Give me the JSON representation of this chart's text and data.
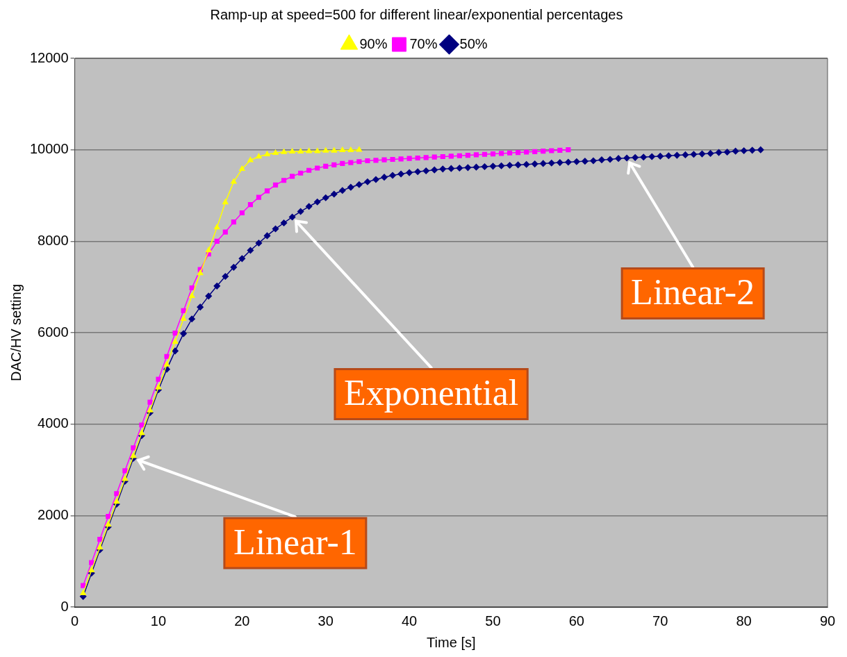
{
  "chart_data": {
    "type": "line",
    "title": "Ramp-up at speed=500 for different linear/exponential percentages",
    "xlabel": "Time [s]",
    "ylabel": "DAC/HV setting",
    "xlim": [
      0,
      90
    ],
    "xticks": [
      0,
      10,
      20,
      30,
      40,
      50,
      60,
      70,
      80,
      90
    ],
    "ylim": [
      0,
      12000
    ],
    "yticks": [
      0,
      2000,
      4000,
      6000,
      8000,
      10000,
      12000
    ],
    "grid": "y",
    "legend": "top",
    "line_style": "solid",
    "annotations": [
      {
        "text": "Linear-1",
        "x": 7,
        "y": 3250
      },
      {
        "text": "Exponential",
        "x": 26,
        "y": 8530
      },
      {
        "text": "Linear-2",
        "x": 66,
        "y": 9820
      }
    ],
    "series": [
      {
        "name": "90%",
        "color": "#ffff00",
        "marker": "triangle",
        "x": [
          1,
          2,
          3,
          4,
          5,
          6,
          7,
          8,
          9,
          10,
          11,
          12,
          13,
          14,
          15,
          16,
          17,
          18,
          19,
          20,
          21,
          22,
          23,
          24,
          25,
          26,
          27,
          28,
          29,
          30,
          31,
          32,
          33,
          34
        ],
        "values": [
          300,
          800,
          1300,
          1800,
          2300,
          2800,
          3300,
          3800,
          4300,
          4800,
          5300,
          5800,
          6300,
          6800,
          7300,
          7800,
          8300,
          8850,
          9300,
          9580,
          9770,
          9850,
          9900,
          9930,
          9950,
          9960,
          9960,
          9970,
          9970,
          9980,
          9980,
          9990,
          9990,
          10000
        ]
      },
      {
        "name": "70%",
        "color": "#ff00ff",
        "marker": "square",
        "x": [
          1,
          2,
          3,
          4,
          5,
          6,
          7,
          8,
          9,
          10,
          11,
          12,
          13,
          14,
          15,
          16,
          17,
          18,
          19,
          20,
          21,
          22,
          23,
          24,
          25,
          26,
          27,
          28,
          29,
          30,
          31,
          32,
          33,
          34,
          35,
          36,
          37,
          38,
          39,
          40,
          41,
          42,
          43,
          44,
          45,
          46,
          47,
          48,
          49,
          50,
          51,
          52,
          53,
          54,
          55,
          56,
          57,
          58,
          59
        ],
        "values": [
          470,
          970,
          1480,
          1980,
          2480,
          2980,
          3480,
          3980,
          4480,
          4980,
          5480,
          5990,
          6480,
          6980,
          7380,
          7720,
          8000,
          8200,
          8420,
          8620,
          8800,
          8960,
          9100,
          9230,
          9330,
          9420,
          9490,
          9550,
          9600,
          9640,
          9670,
          9700,
          9720,
          9740,
          9760,
          9770,
          9780,
          9790,
          9800,
          9810,
          9820,
          9830,
          9840,
          9850,
          9860,
          9870,
          9880,
          9890,
          9900,
          9910,
          9920,
          9930,
          9940,
          9950,
          9960,
          9970,
          9980,
          9990,
          10000
        ]
      },
      {
        "name": "50%",
        "color": "#000080",
        "marker": "diamond",
        "x": [
          1,
          2,
          3,
          4,
          5,
          6,
          7,
          8,
          9,
          10,
          11,
          12,
          13,
          14,
          15,
          16,
          17,
          18,
          19,
          20,
          21,
          22,
          23,
          24,
          25,
          26,
          27,
          28,
          29,
          30,
          31,
          32,
          33,
          34,
          35,
          36,
          37,
          38,
          39,
          40,
          41,
          42,
          43,
          44,
          45,
          46,
          47,
          48,
          49,
          50,
          51,
          52,
          53,
          54,
          55,
          56,
          57,
          58,
          59,
          60,
          61,
          62,
          63,
          64,
          65,
          66,
          67,
          68,
          69,
          70,
          71,
          72,
          73,
          74,
          75,
          76,
          77,
          78,
          79,
          80,
          81,
          82
        ],
        "values": [
          230,
          740,
          1250,
          1750,
          2250,
          2750,
          3250,
          3750,
          4250,
          4750,
          5200,
          5600,
          5980,
          6300,
          6560,
          6800,
          7020,
          7230,
          7430,
          7620,
          7800,
          7960,
          8120,
          8270,
          8400,
          8530,
          8650,
          8760,
          8860,
          8950,
          9030,
          9110,
          9180,
          9240,
          9300,
          9350,
          9400,
          9440,
          9470,
          9500,
          9520,
          9540,
          9560,
          9580,
          9590,
          9600,
          9610,
          9620,
          9630,
          9640,
          9650,
          9660,
          9670,
          9680,
          9690,
          9700,
          9710,
          9720,
          9730,
          9740,
          9750,
          9760,
          9780,
          9790,
          9810,
          9820,
          9830,
          9840,
          9850,
          9860,
          9870,
          9880,
          9890,
          9900,
          9910,
          9920,
          9940,
          9950,
          9970,
          9980,
          9990,
          10000
        ]
      }
    ]
  }
}
